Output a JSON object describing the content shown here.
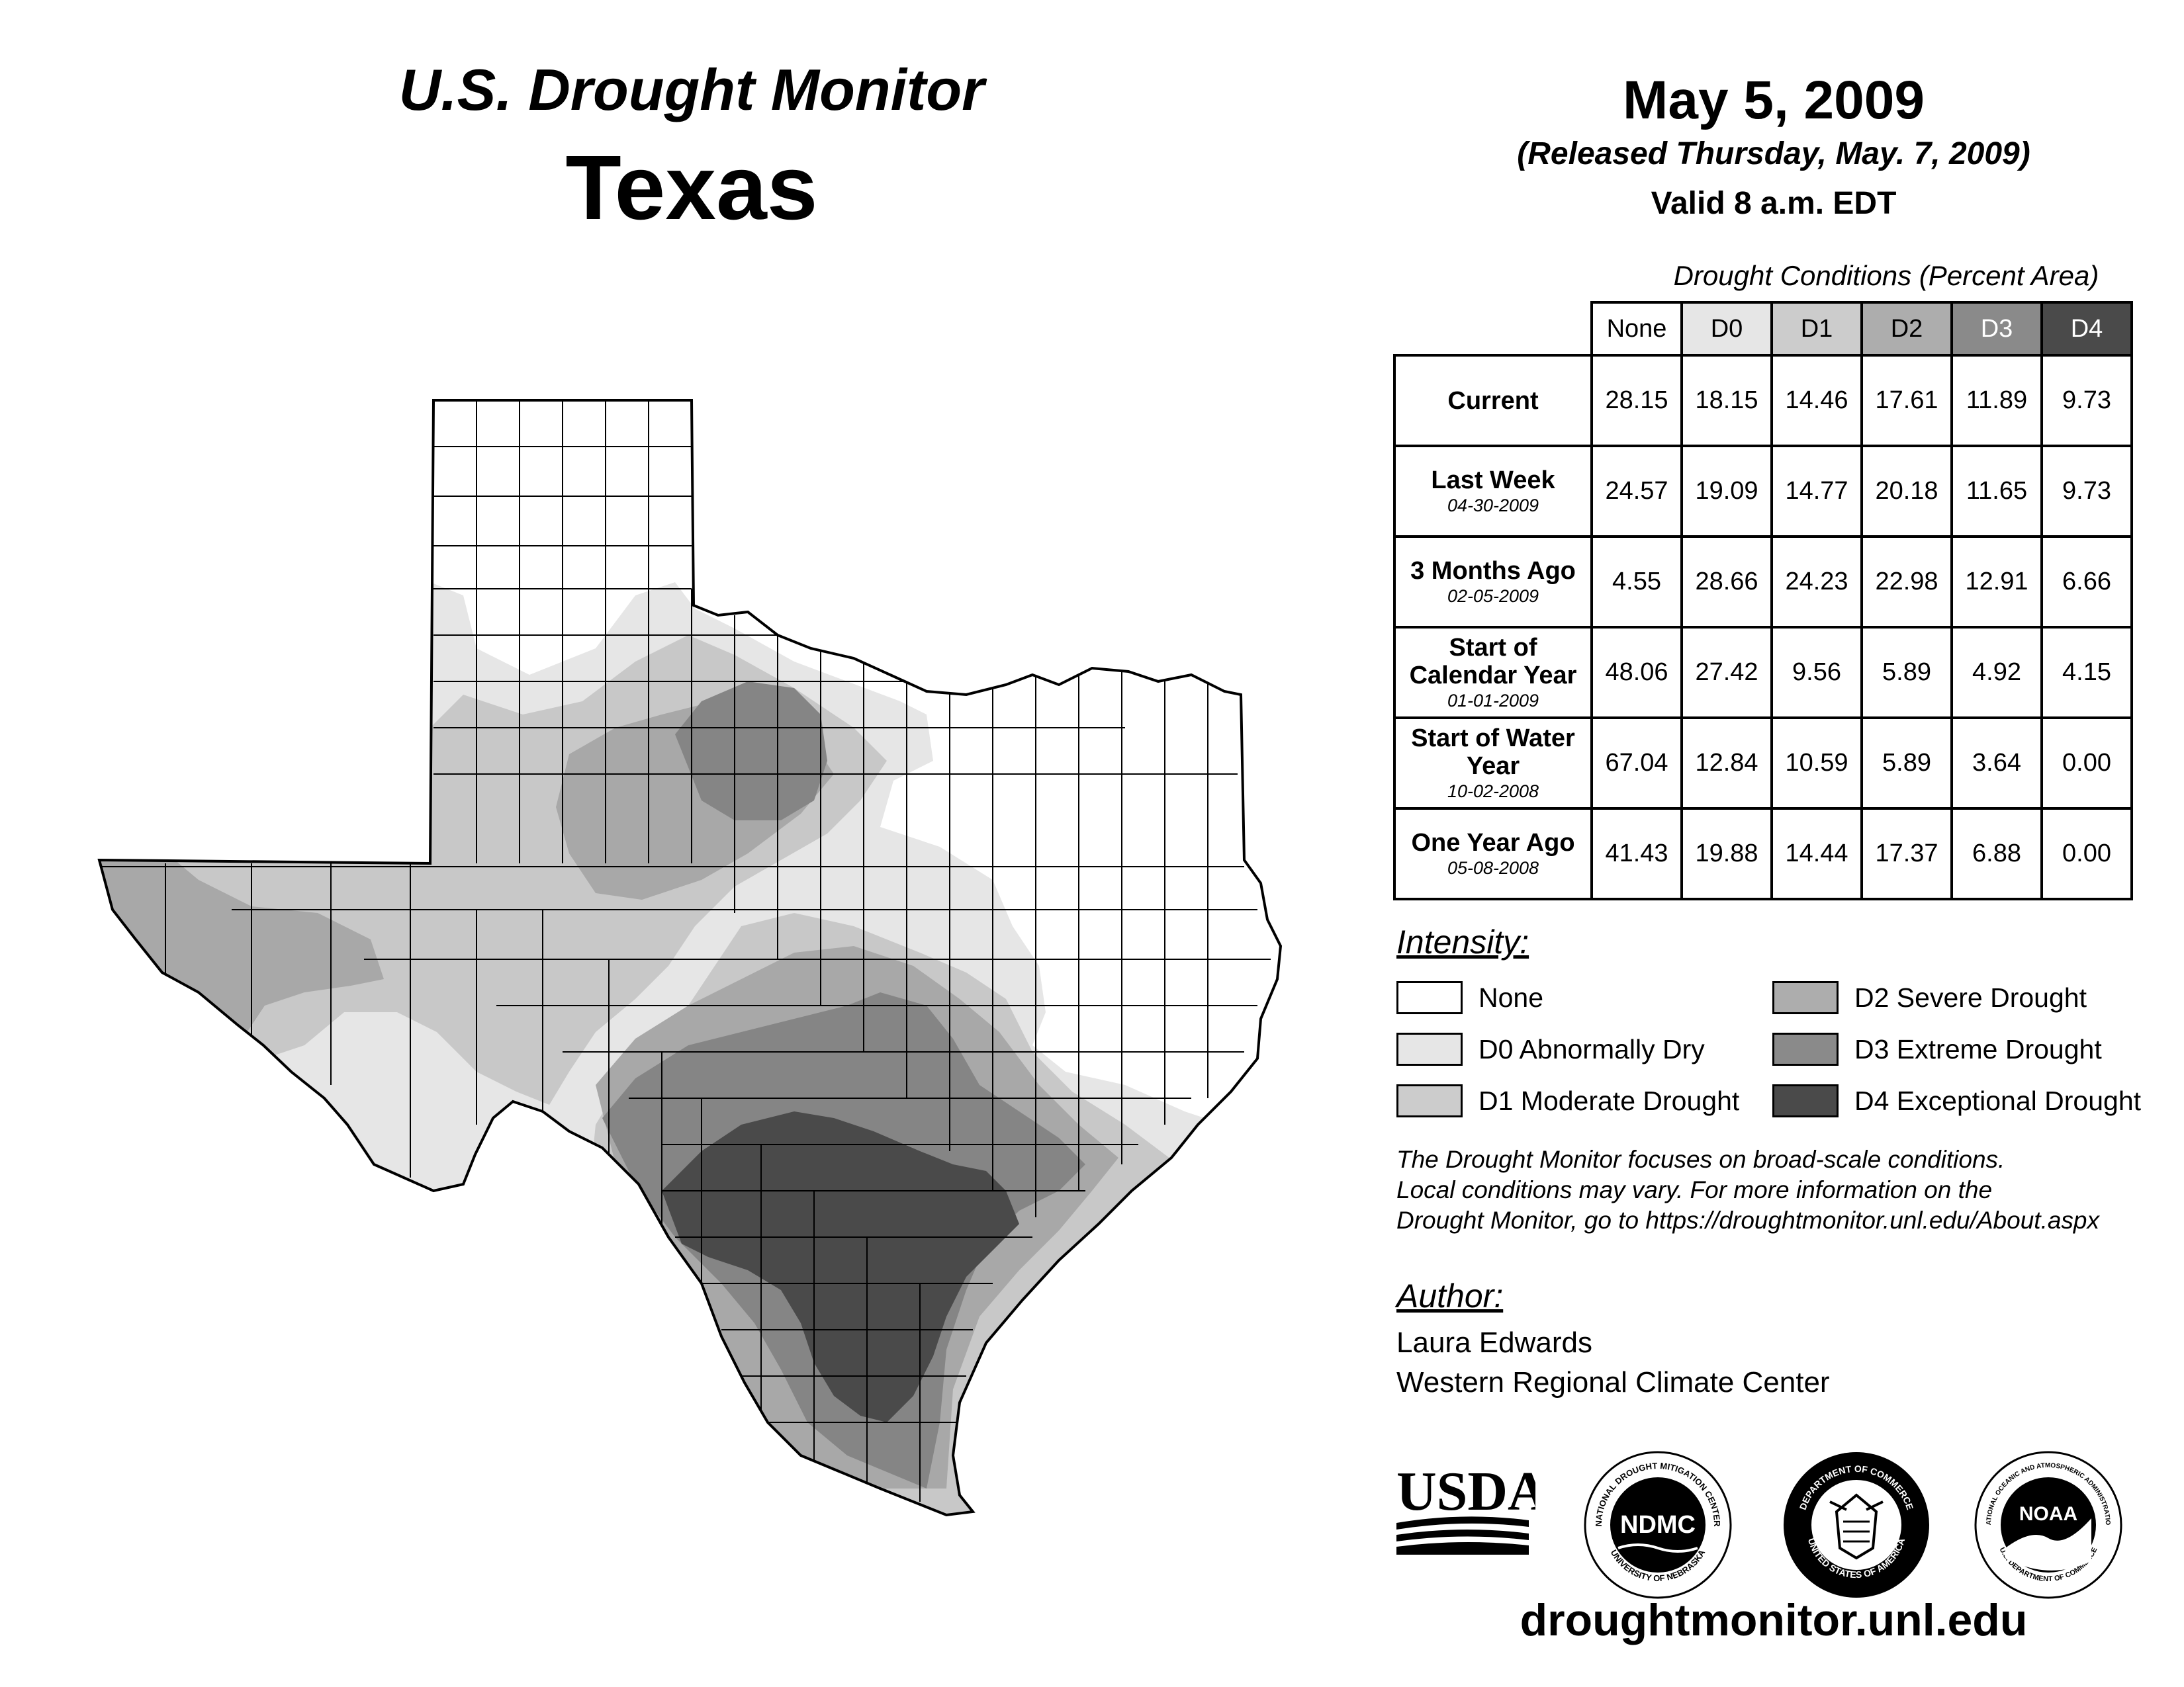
{
  "header": {
    "monitor_title": "U.S. Drought Monitor",
    "state": "Texas",
    "date": "May 5, 2009",
    "released": "(Released Thursday, May. 7, 2009)",
    "valid": "Valid 8 a.m. EDT"
  },
  "table": {
    "caption": "Drought Conditions (Percent Area)",
    "columns": [
      "None",
      "D0",
      "D1",
      "D2",
      "D3",
      "D4"
    ],
    "column_colors": [
      "#ffffff",
      "#e6e6e6",
      "#cccccc",
      "#adadad",
      "#8a8a8a",
      "#4a4a4a"
    ],
    "column_text_colors": [
      "#000000",
      "#000000",
      "#000000",
      "#000000",
      "#ffffff",
      "#ffffff"
    ],
    "rows": [
      {
        "label": "Current",
        "date": "",
        "values": [
          "28.15",
          "18.15",
          "14.46",
          "17.61",
          "11.89",
          "9.73"
        ]
      },
      {
        "label": "Last Week",
        "date": "04-30-2009",
        "values": [
          "24.57",
          "19.09",
          "14.77",
          "20.18",
          "11.65",
          "9.73"
        ]
      },
      {
        "label": "3 Months Ago",
        "date": "02-05-2009",
        "values": [
          "4.55",
          "28.66",
          "24.23",
          "22.98",
          "12.91",
          "6.66"
        ]
      },
      {
        "label": "Start of Calendar Year",
        "date": "01-01-2009",
        "values": [
          "48.06",
          "27.42",
          "9.56",
          "5.89",
          "4.92",
          "4.15"
        ]
      },
      {
        "label": "Start of Water Year",
        "date": "10-02-2008",
        "values": [
          "67.04",
          "12.84",
          "10.59",
          "5.89",
          "3.64",
          "0.00"
        ]
      },
      {
        "label": "One Year Ago",
        "date": "05-08-2008",
        "values": [
          "41.43",
          "19.88",
          "14.44",
          "17.37",
          "6.88",
          "0.00"
        ]
      }
    ]
  },
  "legend": {
    "title": "Intensity:",
    "items": [
      {
        "label": "None",
        "color": "#ffffff"
      },
      {
        "label": "D0 Abnormally Dry",
        "color": "#e6e6e6"
      },
      {
        "label": "D1 Moderate Drought",
        "color": "#cccccc"
      },
      {
        "label": "D2 Severe Drought",
        "color": "#adadad"
      },
      {
        "label": "D3 Extreme Drought",
        "color": "#8a8a8a"
      },
      {
        "label": "D4 Exceptional Drought",
        "color": "#4a4a4a"
      }
    ]
  },
  "note": {
    "line1": "The Drought Monitor focuses on broad-scale conditions.",
    "line2": "Local conditions may vary. For more information on the",
    "line3": "Drought Monitor, go to https://droughtmonitor.unl.edu/About.aspx"
  },
  "author": {
    "title": "Author:",
    "name": "Laura Edwards",
    "org": "Western Regional Climate Center"
  },
  "logos": {
    "usda": "USDA",
    "ndmc": "NDMC",
    "ndmc_ring_top": "NATIONAL DROUGHT MITIGATION CENTER",
    "ndmc_ring_bottom": "UNIVERSITY OF NEBRASKA",
    "commerce_ring_top": "DEPARTMENT OF COMMERCE",
    "commerce_ring_bottom": "UNITED STATES OF AMERICA",
    "noaa": "NOAA",
    "noaa_ring_top": "NATIONAL OCEANIC AND ATMOSPHERIC ADMINISTRATION",
    "noaa_ring_bottom": "U.S. DEPARTMENT OF COMMERCE"
  },
  "footer": {
    "url": "droughtmonitor.unl.edu"
  }
}
